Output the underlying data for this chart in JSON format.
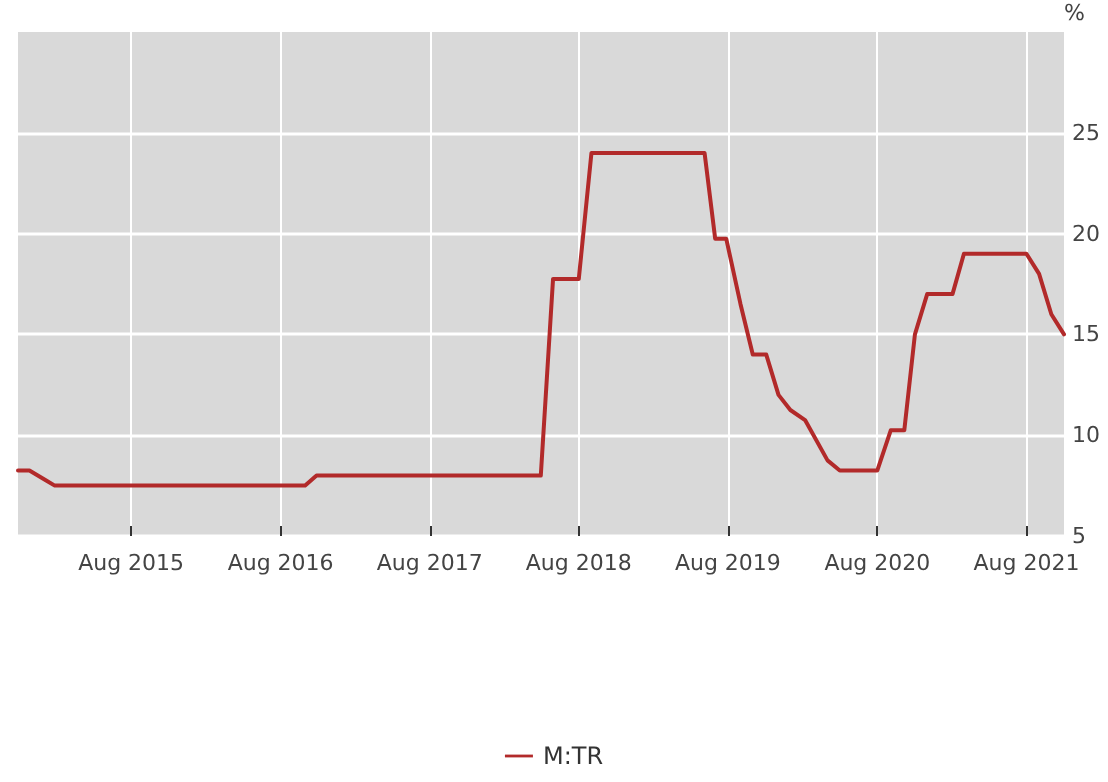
{
  "chart_data": {
    "type": "line",
    "ylabel": "%",
    "x": [
      "2014-10-28",
      "2014-11-25",
      "2015-01-05",
      "2015-01-26",
      "2016-09-30",
      "2016-10-28",
      "2018-04-30",
      "2018-05-30",
      "2018-08-01",
      "2018-09-01",
      "2019-06-05",
      "2019-07-01",
      "2019-07-28",
      "2019-09-01",
      "2019-10-01",
      "2019-11-03",
      "2019-12-03",
      "2020-01-01",
      "2020-02-06",
      "2020-04-01",
      "2020-05-01",
      "2020-08-01",
      "2020-09-03",
      "2020-10-06",
      "2020-11-01",
      "2020-12-01",
      "2021-02-01",
      "2021-03-01",
      "2021-08-01",
      "2021-09-01",
      "2021-10-01",
      "2021-11-01"
    ],
    "series": [
      {
        "name": "M:TR",
        "color": "#b22a2a",
        "values": [
          8.25,
          8.25,
          7.75,
          7.5,
          7.5,
          8,
          8,
          17.75,
          17.75,
          24,
          24,
          19.75,
          19.75,
          16.5,
          14,
          14,
          12,
          11.25,
          10.75,
          8.75,
          8.25,
          8.25,
          10.25,
          10.25,
          15,
          17,
          17,
          19,
          19,
          18,
          16,
          15
        ]
      }
    ],
    "xlim": [
      "2014-10-28",
      "2021-11-01"
    ],
    "xticks": [
      {
        "value": "2015-08-01",
        "label": "Aug 2015"
      },
      {
        "value": "2016-08-01",
        "label": "Aug 2016"
      },
      {
        "value": "2017-08-01",
        "label": "Aug 2017"
      },
      {
        "value": "2018-08-01",
        "label": "Aug 2018"
      },
      {
        "value": "2019-08-01",
        "label": "Aug 2019"
      },
      {
        "value": "2020-08-01",
        "label": "Aug 2020"
      },
      {
        "value": "2021-08-01",
        "label": "Aug 2021"
      }
    ],
    "ylim": [
      5,
      30
    ],
    "yticks": [
      5,
      10,
      15,
      20,
      25
    ],
    "grid": true,
    "legend": "bottom",
    "marker": "none",
    "line_style": "solid"
  }
}
